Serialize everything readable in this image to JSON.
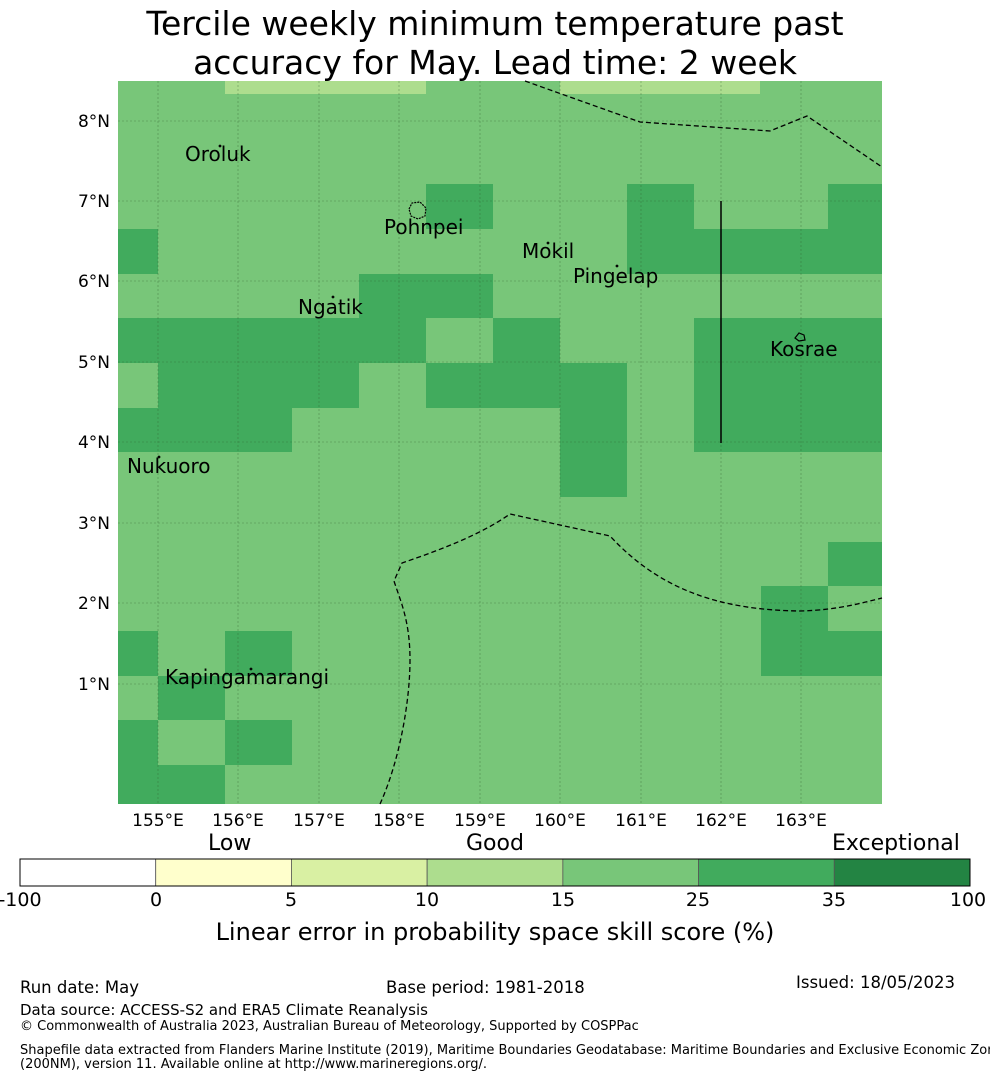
{
  "title_line1": "Tercile weekly minimum temperature past",
  "title_line2": "accuracy for May. Lead time: 2 week",
  "map": {
    "lat_ticks": [
      "8°N",
      "7°N",
      "6°N",
      "5°N",
      "4°N",
      "3°N",
      "2°N",
      "1°N"
    ],
    "lon_ticks": [
      "155°E",
      "156°E",
      "157°E",
      "158°E",
      "159°E",
      "160°E",
      "161°E",
      "162°E",
      "163°E"
    ],
    "places": [
      "Oroluk",
      "Pohnpei",
      "Mokil",
      "Pingelap",
      "Ngatik",
      "Kosrae",
      "Nukuoro",
      "Kapingamarangi"
    ],
    "colors": {
      "good": "#78c679",
      "very_good": "#41ab5d",
      "light": "#addd8e"
    }
  },
  "colorbar": {
    "category_labels": [
      "Low",
      "Good",
      "Exceptional"
    ],
    "ticks": [
      "-100",
      "0",
      "5",
      "10",
      "15",
      "25",
      "35",
      "100"
    ],
    "bins": [
      {
        "from": -100,
        "to": 0,
        "color": "#ffffff"
      },
      {
        "from": 0,
        "to": 5,
        "color": "#ffffcc"
      },
      {
        "from": 5,
        "to": 10,
        "color": "#d9f0a3"
      },
      {
        "from": 10,
        "to": 15,
        "color": "#addd8e"
      },
      {
        "from": 15,
        "to": 25,
        "color": "#78c679"
      },
      {
        "from": 25,
        "to": 35,
        "color": "#41ab5d"
      },
      {
        "from": 35,
        "to": 100,
        "color": "#238443"
      }
    ],
    "title": "Linear error in probability space skill score (%)"
  },
  "footer": {
    "run_date": "Run date: May",
    "base_period": "Base period: 1981-2018",
    "issued": "Issued: 18/05/2023",
    "data_source": "Data source: ACCESS-S2 and ERA5 Climate Reanalysis",
    "copyright": "© Commonwealth of Australia 2023, Australian Bureau of Meteorology, Supported by COSPPac",
    "shapefile_1": "Shapefile data extracted from Flanders Marine Institute (2019), Maritime Boundaries Geodatabase: Maritime Boundaries and Exclusive Economic Zones",
    "shapefile_2": "(200NM), version 11. Available online at http://www.marineregions.org/."
  }
}
